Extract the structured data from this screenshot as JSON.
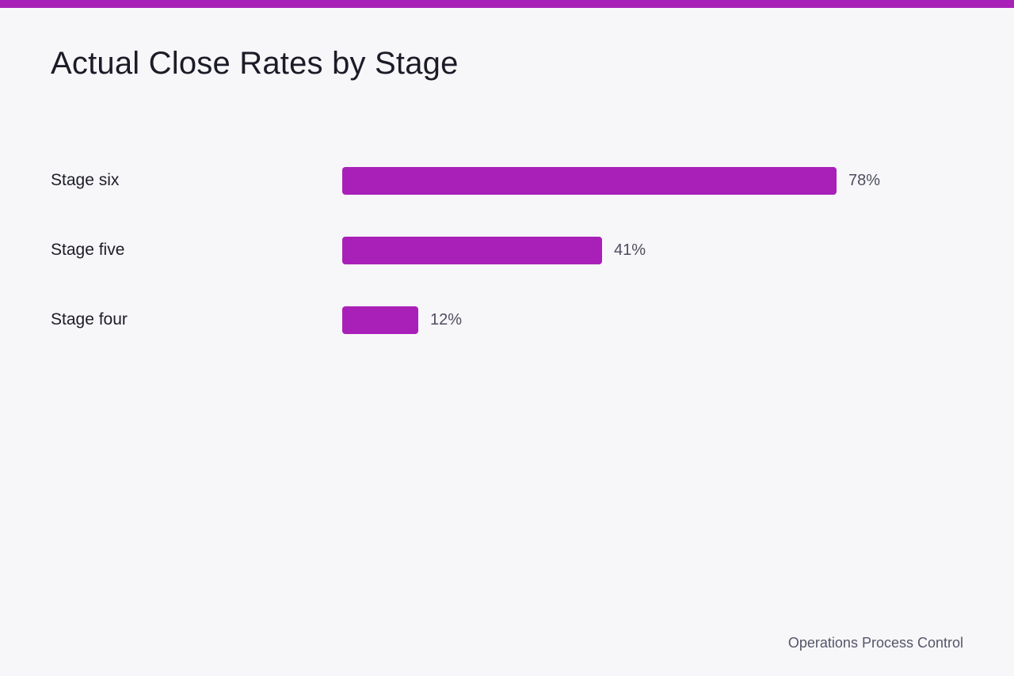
{
  "title": "Actual Close Rates by Stage",
  "footer": "Operations Process Control",
  "colors": {
    "accent": "#a920b9",
    "background": "#f7f7f9",
    "text": "#1c1c28",
    "muted_text": "#4d4d60"
  },
  "chart_data": {
    "type": "bar",
    "orientation": "horizontal",
    "categories": [
      "Stage six",
      "Stage five",
      "Stage four"
    ],
    "values": [
      78,
      41,
      12
    ],
    "value_labels": [
      "78%",
      "41%",
      "12%"
    ],
    "unit": "%",
    "xlim": [
      0,
      100
    ],
    "grid": false,
    "legend": "none"
  }
}
